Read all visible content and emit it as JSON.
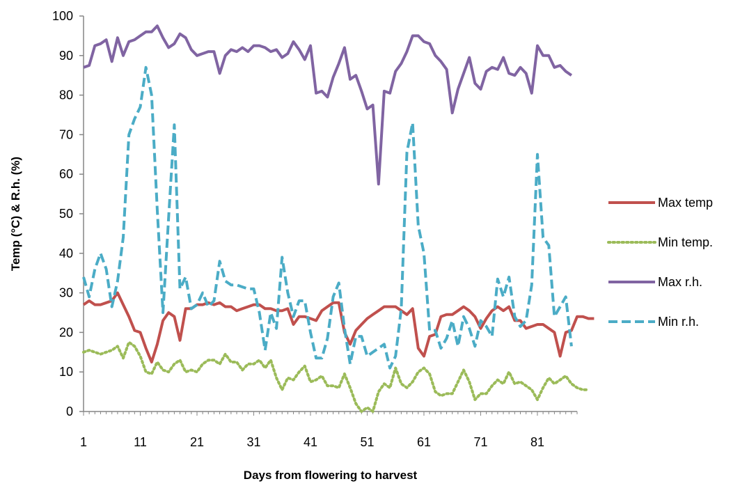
{
  "chart_data": {
    "type": "line",
    "xlabel": "Days from flowering to harvest",
    "ylabel": "Temp (°C) & R.h. (%)",
    "xlim": [
      1,
      88
    ],
    "ylim": [
      0,
      100
    ],
    "x_ticks": [
      1,
      11,
      21,
      31,
      41,
      51,
      61,
      71,
      81
    ],
    "y_ticks": [
      0,
      10,
      20,
      30,
      40,
      50,
      60,
      70,
      80,
      90,
      100
    ],
    "grid": false,
    "legend_position": "right",
    "series": [
      {
        "name": "Max temp",
        "color": "#c0504d",
        "style": "solid",
        "values": [
          27,
          28,
          27,
          27,
          27.5,
          28,
          30,
          27,
          24,
          20.5,
          20,
          16,
          12.5,
          17,
          23,
          25,
          24,
          18,
          26,
          26,
          27,
          27,
          27.5,
          27,
          27.5,
          26.5,
          26.5,
          25.5,
          26,
          26.5,
          27,
          27,
          26,
          26,
          25.5,
          25.5,
          26,
          22,
          24,
          24,
          23.5,
          23,
          25.5,
          26.5,
          27.5,
          27.5,
          20,
          17,
          20.5,
          22,
          23.5,
          24.5,
          25.5,
          26.5,
          26.5,
          26.5,
          25.5,
          24.5,
          26,
          16,
          14,
          19,
          19.5,
          24,
          24.5,
          24.5,
          25.5,
          26.5,
          25.5,
          24,
          21,
          23.5,
          25.5,
          26.5,
          25.5,
          26.5,
          23,
          23,
          21,
          21.5,
          22,
          22,
          21,
          20,
          14,
          20,
          20.5,
          24,
          24,
          23.5,
          23.5
        ]
      },
      {
        "name": "Min temp.",
        "color": "#9bbb59",
        "style": "dotted",
        "values": [
          15,
          15.5,
          15,
          14.5,
          15,
          15.5,
          16.5,
          13.5,
          17.5,
          16.5,
          14,
          10,
          9.5,
          12.5,
          10.5,
          10,
          12,
          13,
          10,
          10.5,
          10,
          12,
          13,
          13,
          12,
          14.5,
          12.5,
          12.5,
          10.5,
          12,
          12,
          13,
          11,
          13,
          8.5,
          5.5,
          8.5,
          8,
          10,
          11.5,
          7.5,
          8,
          9,
          6.5,
          6.5,
          6,
          9.5,
          6,
          2,
          0,
          1,
          0,
          5,
          7,
          6,
          11,
          7,
          6,
          7.5,
          10,
          11,
          9.5,
          5,
          4,
          4.5,
          4.5,
          7.5,
          10.5,
          7.5,
          3,
          4.5,
          4.5,
          6.5,
          8,
          7,
          10,
          7,
          7.5,
          6.5,
          5.5,
          3,
          6,
          8.5,
          7,
          8,
          9,
          7,
          6,
          5.5,
          5.5
        ]
      },
      {
        "name": "Max r.h.",
        "color": "#8064a2",
        "style": "solid",
        "values": [
          87,
          87.5,
          92.5,
          93,
          94,
          88.5,
          94.5,
          90,
          93.5,
          94,
          95,
          96,
          96,
          97.5,
          94.5,
          92,
          93,
          95.5,
          94.5,
          91.5,
          90,
          90.5,
          91,
          91,
          85.5,
          90,
          91.5,
          91,
          92,
          91,
          92.5,
          92.5,
          92,
          91,
          91.5,
          89.5,
          90.5,
          93.5,
          91.5,
          89,
          92.5,
          80.5,
          81,
          79.5,
          84.5,
          88,
          92,
          84,
          85,
          81,
          76.5,
          77.5,
          57.5,
          81,
          80.5,
          86,
          88,
          91,
          95,
          95,
          93.5,
          93,
          90,
          88.5,
          86.5,
          75.5,
          81.5,
          85.5,
          89.5,
          83,
          81.5,
          86,
          87,
          86.5,
          89.5,
          85.5,
          85,
          87,
          85.5,
          80.5,
          92.5,
          90,
          90,
          87,
          87.5,
          86,
          85
        ]
      },
      {
        "name": "Min r.h.",
        "color": "#4bacc6",
        "style": "dashed",
        "values": [
          34,
          29,
          36,
          40,
          36,
          26.5,
          33,
          44,
          70,
          74,
          77,
          87,
          80,
          51,
          25,
          49,
          72.5,
          31,
          34,
          26,
          27,
          30,
          26.5,
          28,
          38,
          33,
          32,
          32,
          31.5,
          31,
          31,
          25,
          15.5,
          25,
          21,
          39,
          30,
          24,
          28,
          28,
          20,
          13.5,
          13.5,
          18.5,
          29,
          32.5,
          21,
          12,
          19,
          19,
          14,
          15,
          16,
          17,
          11,
          14,
          26,
          65.5,
          73,
          47,
          40,
          20.5,
          20.5,
          16,
          18.5,
          23,
          16.5,
          24,
          21,
          16.5,
          23,
          21.5,
          19,
          33.5,
          29,
          34,
          24,
          21.5,
          23,
          32,
          65,
          44,
          42,
          24,
          26.5,
          29,
          16.5
        ]
      }
    ]
  }
}
